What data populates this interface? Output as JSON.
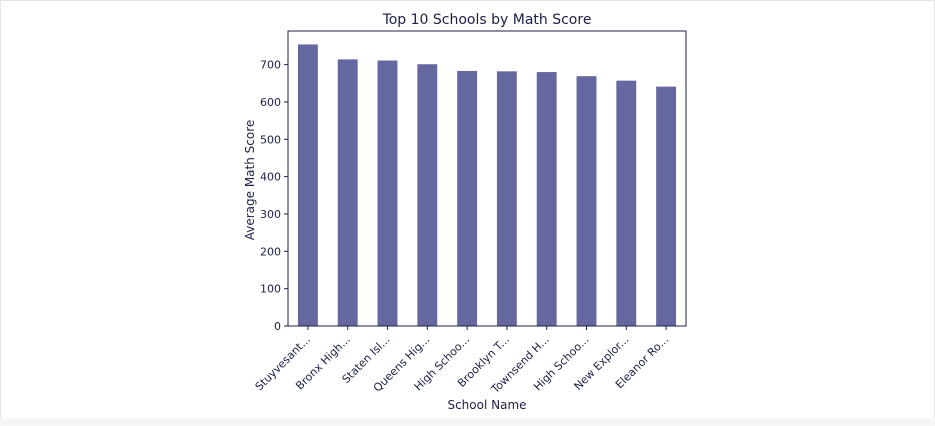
{
  "chart_data": {
    "type": "bar",
    "title": "Top 10 Schools by Math Score",
    "xlabel": "School Name",
    "ylabel": "Average Math Score",
    "categories": [
      "Stuyvesant...",
      "Bronx High...",
      "Staten Isl...",
      "Queens Hig...",
      "High Schoo...",
      "Brooklyn T...",
      "Townsend H...",
      "High Schoo...",
      "New Explor...",
      "Eleanor Ro..."
    ],
    "values": [
      754,
      714,
      711,
      701,
      683,
      682,
      680,
      669,
      657,
      641
    ],
    "ylim": [
      0,
      790
    ],
    "yticks": [
      0,
      100,
      200,
      300,
      400,
      500,
      600,
      700
    ],
    "grid": false,
    "bar_color": "#6568a0",
    "axis_color": "#1b1f45"
  }
}
